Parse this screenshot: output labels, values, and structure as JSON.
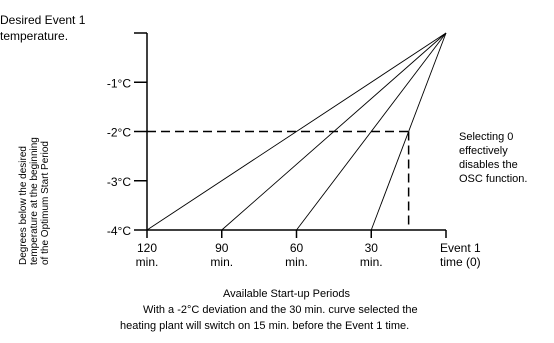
{
  "top_left_label": [
    "Desired Event 1",
    "temperature."
  ],
  "y_axis_title": [
    "Degrees below the desired",
    "temperature at the beginning",
    "of the Optimum Start Period"
  ],
  "y_ticks": [
    "-1°C",
    "-2°C",
    "-3°C",
    "-4°C"
  ],
  "x_ticks": [
    {
      "value": "120",
      "unit": "min."
    },
    {
      "value": "90",
      "unit": "min."
    },
    {
      "value": "60",
      "unit": "min."
    },
    {
      "value": "30",
      "unit": "min."
    },
    {
      "value": "Event 1",
      "unit": "time (0)"
    }
  ],
  "right_note": [
    "Selecting 0",
    "effectively",
    "disables the",
    "OSC function."
  ],
  "x_axis_title": "Available Start-up Periods",
  "caption": [
    "With a -2°C deviation and the 30 min. curve selected the",
    "heating plant will switch on 15 min. before the Event 1 time."
  ],
  "chart_data": {
    "type": "line",
    "x_unit": "minutes before Event 1",
    "y_unit": "°C below desired temperature",
    "xlim": [
      120,
      0
    ],
    "ylim": [
      0,
      -4
    ],
    "series": [
      {
        "x": [
          120,
          0
        ],
        "y": [
          -4,
          0
        ]
      },
      {
        "x": [
          90,
          0
        ],
        "y": [
          -4,
          0
        ]
      },
      {
        "x": [
          60,
          0
        ],
        "y": [
          -4,
          0
        ]
      },
      {
        "x": [
          30,
          0
        ],
        "y": [
          -4,
          0
        ]
      }
    ],
    "highlight": {
      "deviation": -2,
      "curve": 30,
      "switch_on": 15
    }
  }
}
